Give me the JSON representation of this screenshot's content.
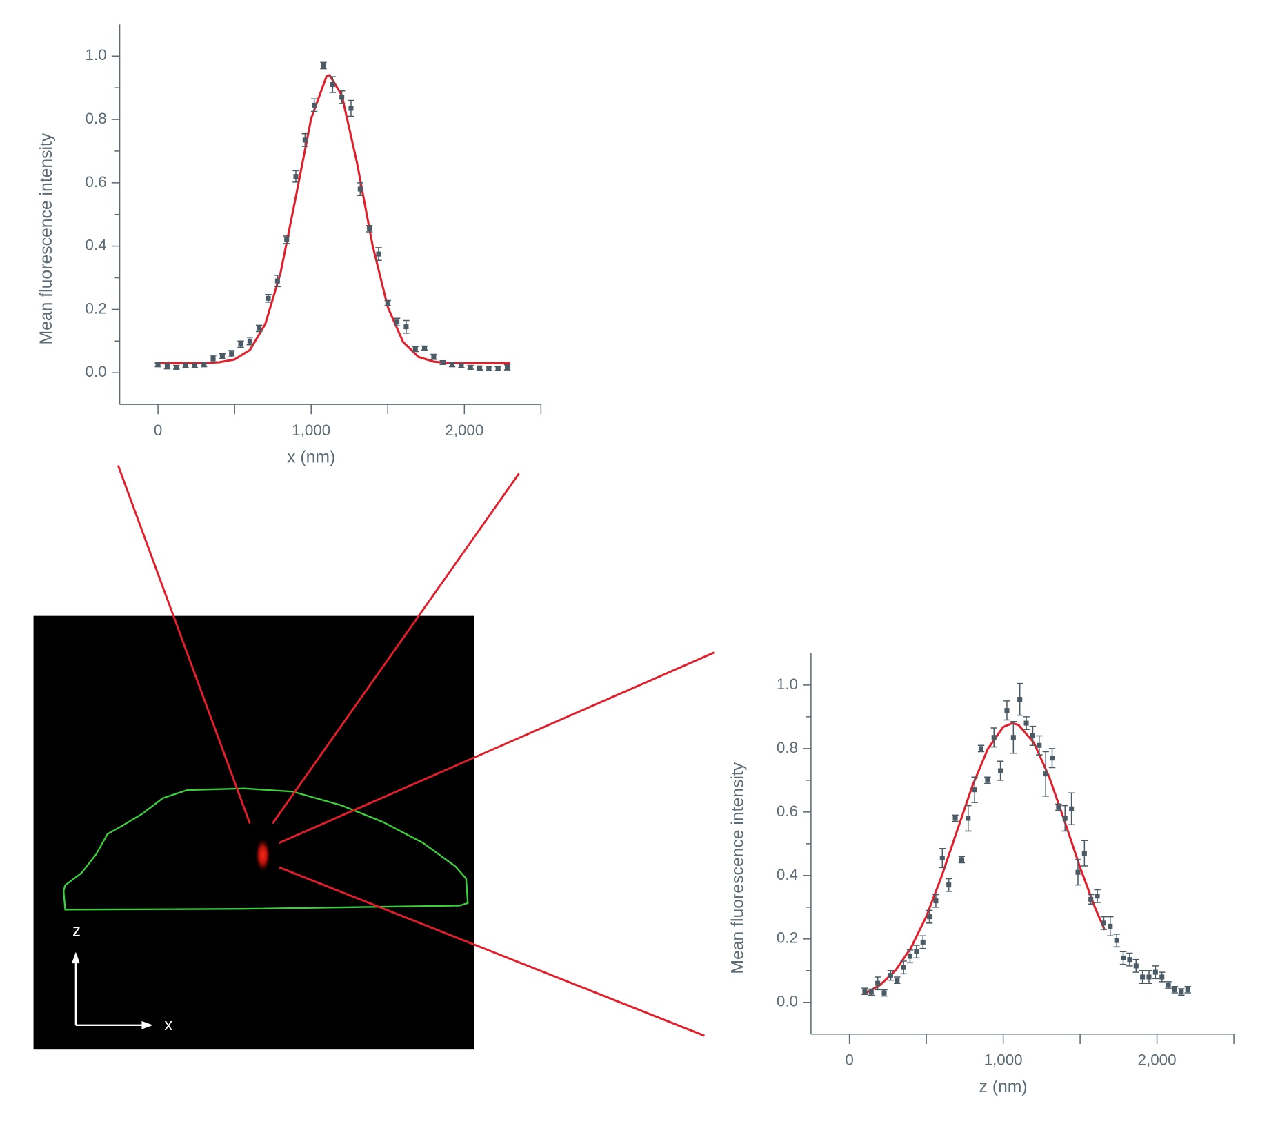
{
  "chart_data": [
    {
      "type": "scatter",
      "xlabel": "x (nm)",
      "ylabel": "Mean fluorescence intensity",
      "xlim": [
        -250,
        2500
      ],
      "ylim": [
        -0.1,
        1.1
      ],
      "xticks": [
        0,
        {
          "value": 1000,
          "label": "1,000"
        },
        {
          "value": 2000,
          "label": "2,000"
        }
      ],
      "xminorticks": [
        500,
        1500,
        2500
      ],
      "yticks": [
        {
          "value": 0,
          "label": "0.0"
        },
        0.2,
        0.4,
        0.6,
        0.8,
        {
          "value": 1,
          "label": "1.0"
        }
      ],
      "yminorticks": [
        0.1,
        0.3,
        0.5,
        0.7,
        0.9
      ],
      "color": "#4b5b66",
      "x": [
        0,
        60,
        120,
        180,
        240,
        300,
        360,
        420,
        480,
        540,
        600,
        660,
        720,
        780,
        840,
        900,
        960,
        1020,
        1080,
        1140,
        1200,
        1260,
        1320,
        1380,
        1440,
        1500,
        1560,
        1620,
        1680,
        1740,
        1800,
        1860,
        1920,
        1980,
        2040,
        2100,
        2160,
        2220,
        2280
      ],
      "values": [
        0.025,
        0.02,
        0.017,
        0.022,
        0.022,
        0.025,
        0.045,
        0.052,
        0.06,
        0.09,
        0.1,
        0.14,
        0.235,
        0.29,
        0.42,
        0.62,
        0.735,
        0.845,
        0.97,
        0.91,
        0.87,
        0.835,
        0.58,
        0.455,
        0.375,
        0.22,
        0.16,
        0.145,
        0.075,
        0.078,
        0.05,
        0.032,
        0.025,
        0.022,
        0.017,
        0.015,
        0.013,
        0.013,
        0.017
      ],
      "errors": [
        0.006,
        0.008,
        0.006,
        0.006,
        0.006,
        0.006,
        0.01,
        0.008,
        0.01,
        0.01,
        0.012,
        0.01,
        0.012,
        0.018,
        0.012,
        0.018,
        0.02,
        0.02,
        0.01,
        0.025,
        0.02,
        0.025,
        0.02,
        0.01,
        0.02,
        0.008,
        0.012,
        0.02,
        0.008,
        0.006,
        0.008,
        0.006,
        0.006,
        0.006,
        0.006,
        0.006,
        0.006,
        0.006,
        0.008
      ],
      "fit": {
        "color": "#e31e2b",
        "x": [
          0,
          100,
          200,
          300,
          400,
          500,
          600,
          700,
          800,
          900,
          1000,
          1100,
          1120,
          1200,
          1300,
          1400,
          1500,
          1600,
          1700,
          1800,
          1900,
          2000,
          2100,
          2200,
          2300
        ],
        "values": [
          0.03,
          0.03,
          0.03,
          0.03,
          0.033,
          0.042,
          0.072,
          0.153,
          0.315,
          0.556,
          0.803,
          0.936,
          0.94,
          0.876,
          0.661,
          0.404,
          0.207,
          0.097,
          0.05,
          0.035,
          0.03,
          0.03,
          0.03,
          0.03,
          0.03
        ]
      }
    },
    {
      "type": "scatter",
      "xlabel": "z (nm)",
      "ylabel": "Mean fluorescence intensity",
      "xlim": [
        -250,
        2500
      ],
      "ylim": [
        -0.1,
        1.1
      ],
      "xticks": [
        0,
        {
          "value": 1000,
          "label": "1,000"
        },
        {
          "value": 2000,
          "label": "2,000"
        }
      ],
      "xminorticks": [
        500,
        1500,
        2500
      ],
      "yticks": [
        {
          "value": 0,
          "label": "0.0"
        },
        0.2,
        0.4,
        0.6,
        0.8,
        {
          "value": 1,
          "label": "1.0"
        }
      ],
      "yminorticks": [
        0.1,
        0.3,
        0.5,
        0.7,
        0.9
      ],
      "color": "#4b5b66",
      "x": [
        100,
        142,
        184,
        226,
        268,
        310,
        352,
        394,
        436,
        478,
        520,
        562,
        604,
        646,
        688,
        730,
        772,
        814,
        856,
        898,
        940,
        982,
        1024,
        1066,
        1108,
        1150,
        1192,
        1234,
        1276,
        1318,
        1360,
        1402,
        1444,
        1486,
        1528,
        1570,
        1612,
        1654,
        1696,
        1738,
        1780,
        1822,
        1864,
        1906,
        1948,
        1990,
        2032,
        2074,
        2116,
        2158,
        2200
      ],
      "values": [
        0.035,
        0.032,
        0.06,
        0.03,
        0.085,
        0.07,
        0.11,
        0.145,
        0.16,
        0.19,
        0.27,
        0.32,
        0.455,
        0.37,
        0.58,
        0.45,
        0.58,
        0.67,
        0.8,
        0.7,
        0.835,
        0.73,
        0.92,
        0.835,
        0.955,
        0.88,
        0.84,
        0.81,
        0.72,
        0.77,
        0.615,
        0.58,
        0.61,
        0.41,
        0.47,
        0.325,
        0.335,
        0.25,
        0.24,
        0.195,
        0.14,
        0.135,
        0.115,
        0.08,
        0.08,
        0.095,
        0.08,
        0.055,
        0.04,
        0.033,
        0.04
      ],
      "errors": [
        0.01,
        0.01,
        0.02,
        0.01,
        0.015,
        0.01,
        0.02,
        0.02,
        0.02,
        0.02,
        0.02,
        0.02,
        0.03,
        0.02,
        0.01,
        0.01,
        0.04,
        0.04,
        0.01,
        0.01,
        0.03,
        0.03,
        0.03,
        0.05,
        0.05,
        0.02,
        0.03,
        0.03,
        0.07,
        0.03,
        0.01,
        0.04,
        0.05,
        0.04,
        0.04,
        0.015,
        0.02,
        0.02,
        0.03,
        0.02,
        0.02,
        0.02,
        0.02,
        0.02,
        0.02,
        0.02,
        0.015,
        0.01,
        0.01,
        0.01,
        0.01
      ],
      "fit": {
        "color": "#e31e2b",
        "x": [
          100,
          200,
          300,
          400,
          500,
          600,
          700,
          800,
          900,
          1000,
          1060,
          1100,
          1200,
          1300,
          1400,
          1500,
          1600,
          1660
        ],
        "values": [
          0.028,
          0.055,
          0.101,
          0.172,
          0.271,
          0.398,
          0.541,
          0.683,
          0.799,
          0.868,
          0.88,
          0.874,
          0.818,
          0.709,
          0.57,
          0.425,
          0.295,
          0.228
        ]
      }
    }
  ],
  "image": {
    "z_label": "z",
    "x_label": "x"
  }
}
